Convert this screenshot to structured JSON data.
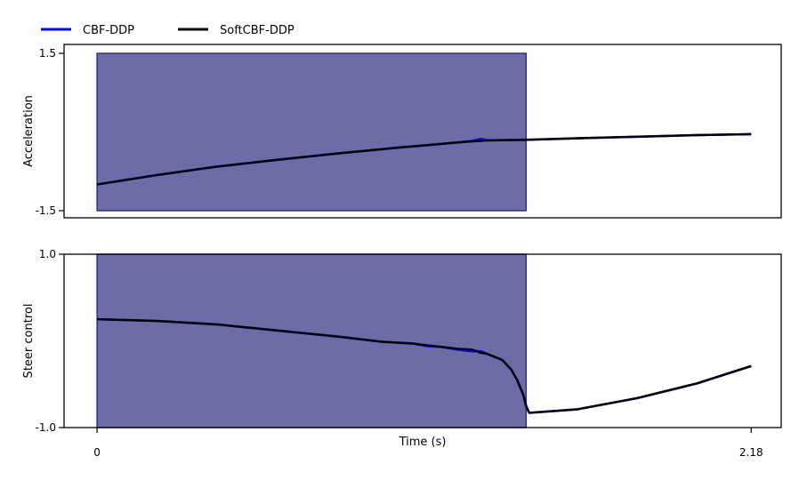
{
  "legend": {
    "position": "top-left",
    "entries": [
      {
        "label": "CBF-DDP",
        "color": "#0000ff"
      },
      {
        "label": "SoftCBF-DDP",
        "color": "#000000"
      }
    ]
  },
  "colors": {
    "shade_fill": "#6c6ca6",
    "shade_edge": "#33337a",
    "cbf": "#0000ff",
    "softcbf": "#000000"
  },
  "chart_data": [
    {
      "type": "line",
      "ylabel": "Acceleration",
      "ylim": [
        -1.5,
        1.5
      ],
      "yticks": [
        {
          "value": -1.5,
          "label": "-1.5"
        },
        {
          "value": 1.5,
          "label": "1.5"
        }
      ],
      "xlim": [
        -0.11,
        2.28
      ],
      "grid": false,
      "shaded_region": {
        "x0": 0.0,
        "x1": 1.43,
        "y0": -1.5,
        "y1": 1.5
      },
      "series": [
        {
          "name": "CBF-DDP",
          "color": "#0000ff",
          "x": [
            0,
            0.2,
            0.4,
            0.6,
            0.8,
            1.0,
            1.1,
            1.2,
            1.25,
            1.28,
            1.3,
            1.43,
            1.6,
            1.8,
            2.0,
            2.18
          ],
          "y": [
            -1.0,
            -0.82,
            -0.66,
            -0.53,
            -0.41,
            -0.3,
            -0.25,
            -0.2,
            -0.17,
            -0.13,
            -0.16,
            -0.15,
            -0.12,
            -0.09,
            -0.06,
            -0.04
          ]
        },
        {
          "name": "SoftCBF-DDP",
          "color": "#000000",
          "x": [
            0,
            0.2,
            0.4,
            0.6,
            0.8,
            1.0,
            1.1,
            1.2,
            1.25,
            1.28,
            1.3,
            1.43,
            1.6,
            1.8,
            2.0,
            2.18
          ],
          "y": [
            -1.0,
            -0.82,
            -0.66,
            -0.53,
            -0.41,
            -0.3,
            -0.25,
            -0.2,
            -0.18,
            -0.17,
            -0.16,
            -0.15,
            -0.12,
            -0.09,
            -0.06,
            -0.04
          ]
        }
      ]
    },
    {
      "type": "line",
      "ylabel": "Steer control",
      "xlabel": "Time (s)",
      "ylim": [
        -1.0,
        1.0
      ],
      "yticks": [
        {
          "value": -1.0,
          "label": "-1.0"
        },
        {
          "value": 1.0,
          "label": "1.0"
        }
      ],
      "xlim": [
        -0.11,
        2.28
      ],
      "xticks": [
        {
          "value": 0,
          "label": "0"
        },
        {
          "value": 2.18,
          "label": "2.18"
        }
      ],
      "grid": false,
      "shaded_region": {
        "x0": 0.0,
        "x1": 1.43,
        "y0": -1.0,
        "y1": 1.0
      },
      "series": [
        {
          "name": "CBF-DDP",
          "color": "#0000ff",
          "x": [
            0,
            0.2,
            0.4,
            0.6,
            0.8,
            0.95,
            1.05,
            1.1,
            1.15,
            1.2,
            1.25,
            1.28,
            1.3,
            1.35,
            1.38,
            1.4,
            1.42,
            1.43,
            1.44,
            1.6,
            1.8,
            2.0,
            2.18
          ],
          "y": [
            0.25,
            0.23,
            0.19,
            0.12,
            0.05,
            -0.01,
            -0.03,
            -0.06,
            -0.07,
            -0.1,
            -0.12,
            -0.12,
            -0.15,
            -0.22,
            -0.33,
            -0.45,
            -0.62,
            -0.75,
            -0.83,
            -0.79,
            -0.66,
            -0.49,
            -0.29
          ]
        },
        {
          "name": "SoftCBF-DDP",
          "color": "#000000",
          "x": [
            0,
            0.2,
            0.4,
            0.6,
            0.8,
            0.95,
            1.05,
            1.1,
            1.15,
            1.2,
            1.25,
            1.28,
            1.3,
            1.35,
            1.38,
            1.4,
            1.42,
            1.43,
            1.44,
            1.6,
            1.8,
            2.0,
            2.18
          ],
          "y": [
            0.25,
            0.23,
            0.19,
            0.12,
            0.05,
            -0.01,
            -0.03,
            -0.05,
            -0.07,
            -0.09,
            -0.1,
            -0.14,
            -0.15,
            -0.22,
            -0.33,
            -0.45,
            -0.62,
            -0.75,
            -0.83,
            -0.79,
            -0.66,
            -0.49,
            -0.29
          ]
        }
      ]
    }
  ]
}
